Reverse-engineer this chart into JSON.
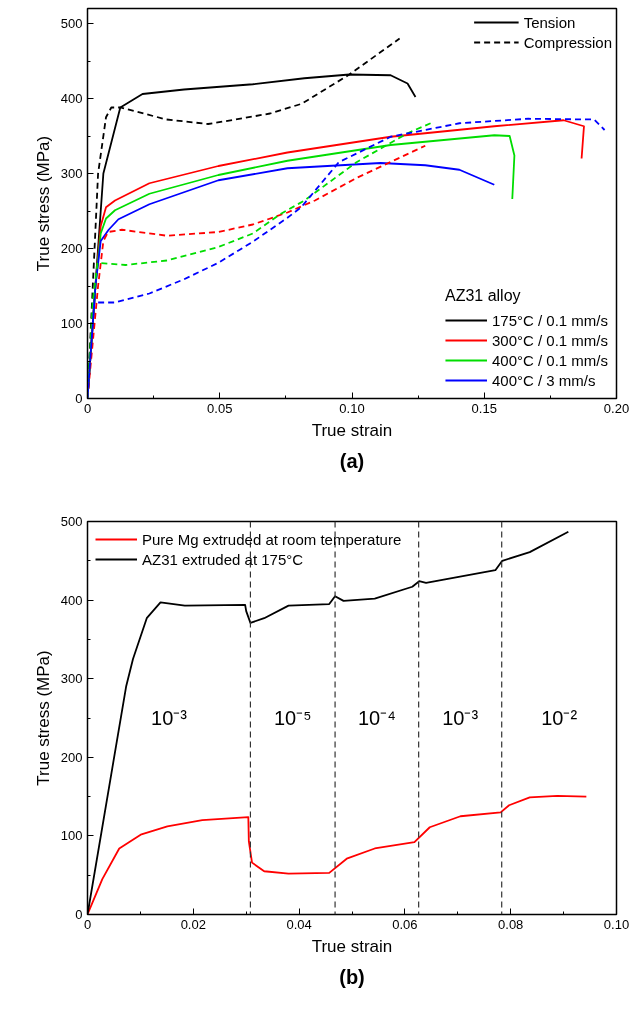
{
  "chart_data": [
    {
      "type": "line",
      "title": "(a)",
      "xlabel": "True strain",
      "ylabel": "True stress (MPa)",
      "legend": "bottom right",
      "legend_title": "AZ31 alloy",
      "xlim": [
        0,
        0.2
      ],
      "ylim": [
        0,
        520
      ],
      "xticks": [
        {
          "value": 0,
          "label": "0"
        },
        {
          "value": 0.025,
          "label": null
        },
        0.05,
        {
          "value": 0.075,
          "label": null
        },
        {
          "value": 0.1,
          "label": "0.10"
        },
        {
          "value": 0.125,
          "label": null
        },
        0.15,
        {
          "value": 0.175,
          "label": null
        },
        {
          "value": 0.2,
          "label": "0.20"
        }
      ],
      "yticks": [
        0,
        {
          "value": 50,
          "label": null
        },
        100,
        {
          "value": 150,
          "label": null
        },
        200,
        {
          "value": 250,
          "label": null
        },
        300,
        {
          "value": 350,
          "label": null
        },
        400,
        {
          "value": 450,
          "label": null
        },
        500
      ],
      "annotations": [
        "Tension",
        "Compression"
      ],
      "series": [
        {
          "name": "175°C / 0.1 mm/s",
          "color": "#000000",
          "line_style": "solid",
          "x": [
            0,
            0.006,
            0.0124,
            0.0208,
            0.0365,
            0.0625,
            0.082,
            0.099,
            0.1146,
            0.121,
            0.124
          ],
          "values": [
            0,
            300,
            388,
            406,
            412,
            419,
            427,
            432,
            431,
            420,
            402
          ]
        },
        {
          "name": "300°C / 0.1 mm/s",
          "color": "#ff0000",
          "line_style": "solid",
          "x": [
            0,
            0.003,
            0.005,
            0.007,
            0.0104,
            0.0234,
            0.0495,
            0.0756,
            0.1146,
            0.1538,
            0.18,
            0.1877,
            0.1868
          ],
          "values": [
            0,
            150,
            230,
            255,
            264,
            287,
            310,
            328,
            349,
            363,
            371,
            363,
            320
          ]
        },
        {
          "name": "400°C / 0.1 mm/s",
          "color": "#00dd00",
          "line_style": "solid",
          "x": [
            0,
            0.003,
            0.005,
            0.007,
            0.0104,
            0.0234,
            0.0495,
            0.0756,
            0.1146,
            0.1538,
            0.1596,
            0.1614,
            0.1606
          ],
          "values": [
            0,
            150,
            220,
            240,
            251,
            273,
            298,
            317,
            338,
            351,
            350,
            324,
            266
          ]
        },
        {
          "name": "400°C / 3 mm/s",
          "color": "#0000ff",
          "line_style": "solid",
          "x": [
            0,
            0.003,
            0.005,
            0.008,
            0.0117,
            0.0234,
            0.0495,
            0.0756,
            0.1108,
            0.1277,
            0.1406,
            0.1538
          ],
          "values": [
            0,
            150,
            210,
            225,
            239,
            259,
            291,
            307,
            314,
            311,
            305,
            285
          ]
        },
        {
          "color": "#000000",
          "line_style": "dashed",
          "x": [
            0,
            0.004,
            0.007,
            0.009,
            0.0124,
            0.0299,
            0.0456,
            0.056,
            0.069,
            0.081,
            0.099,
            0.118
          ],
          "values": [
            0,
            300,
            375,
            388,
            388,
            372,
            366,
            372,
            380,
            393,
            432,
            480
          ]
        },
        {
          "color": "#ff0000",
          "line_style": "dashed",
          "x": [
            0,
            0.004,
            0.006,
            0.0078,
            0.013,
            0.03,
            0.0495,
            0.0625,
            0.0756,
            0.086,
            0.1017,
            0.1277
          ],
          "values": [
            0,
            150,
            210,
            222,
            225,
            217,
            222,
            232,
            248,
            264,
            294,
            337
          ]
        },
        {
          "color": "#00dd00",
          "line_style": "dashed",
          "x": [
            0,
            0.002,
            0.0038,
            0.0143,
            0.03,
            0.0495,
            0.0625,
            0.073,
            0.082,
            0.1017,
            0.1212,
            0.1297
          ],
          "values": [
            0,
            130,
            181,
            178,
            184,
            202,
            220,
            246,
            264,
            315,
            354,
            367
          ]
        },
        {
          "color": "#0000ff",
          "line_style": "dashed",
          "x": [
            0,
            0.002,
            0.0026,
            0.0104,
            0.0234,
            0.0365,
            0.0495,
            0.0625,
            0.0756,
            0.0808,
            0.095,
            0.1146,
            0.1406,
            0.1667,
            0.1916,
            0.1955
          ],
          "values": [
            0,
            100,
            128,
            128,
            140,
            159,
            181,
            209,
            241,
            255,
            315,
            349,
            367,
            373,
            372,
            358
          ]
        }
      ]
    },
    {
      "type": "line",
      "title": "(b)",
      "xlabel": "True strain",
      "ylabel": "True stress (MPa)",
      "legend": "top left",
      "xlim": [
        0,
        0.1
      ],
      "ylim": [
        0,
        500
      ],
      "xticks": [
        {
          "value": 0,
          "label": "0"
        },
        {
          "value": 0.01,
          "label": null
        },
        0.02,
        {
          "value": 0.03,
          "label": null
        },
        0.04,
        {
          "value": 0.05,
          "label": null
        },
        0.06,
        {
          "value": 0.07,
          "label": null
        },
        0.08,
        {
          "value": 0.09,
          "label": null
        },
        {
          "value": 0.1,
          "label": "0.10"
        }
      ],
      "yticks": [
        0,
        {
          "value": 50,
          "label": null
        },
        100,
        {
          "value": 150,
          "label": null
        },
        200,
        {
          "value": 250,
          "label": null
        },
        300,
        {
          "value": 350,
          "label": null
        },
        400,
        {
          "value": 450,
          "label": null
        },
        500
      ],
      "ref_lines": [
        {
          "axis": "x",
          "value": 0.0308,
          "line_style": "dashed",
          "color": "#333333"
        },
        {
          "axis": "x",
          "value": 0.0468,
          "line_style": "dashed",
          "color": "#333333"
        },
        {
          "axis": "x",
          "value": 0.0626,
          "line_style": "dashed",
          "color": "#333333"
        },
        {
          "axis": "x",
          "value": 0.0783,
          "line_style": "dashed",
          "color": "#333333"
        }
      ],
      "annotations": [
        "10⁻³",
        "10⁻⁵",
        "10⁻⁴",
        "10⁻³",
        "10⁻²"
      ],
      "series": [
        {
          "name": "Pure Mg extruded at room temperature",
          "color": "#ff0000",
          "line_style": "solid",
          "x": [
            0,
            0.0028,
            0.006,
            0.0102,
            0.0151,
            0.0217,
            0.0304,
            0.0305,
            0.0311,
            0.0334,
            0.038,
            0.0457,
            0.049,
            0.0543,
            0.0618,
            0.0647,
            0.0705,
            0.0781,
            0.0797,
            0.0836,
            0.0888,
            0.0943
          ],
          "values": [
            0,
            45,
            84,
            102,
            112,
            120,
            124,
            93,
            66,
            55,
            52,
            53,
            71,
            84,
            92,
            111,
            125,
            130,
            139,
            149,
            151,
            150
          ]
        },
        {
          "name": "AZ31 extruded at 175°C",
          "color": "#000000",
          "line_style": "solid",
          "x": [
            0,
            0.0073,
            0.0086,
            0.0112,
            0.0138,
            0.0184,
            0.0298,
            0.03,
            0.0308,
            0.0334,
            0.038,
            0.0457,
            0.0468,
            0.0484,
            0.0543,
            0.0614,
            0.0627,
            0.064,
            0.0771,
            0.0784,
            0.0836,
            0.0909
          ],
          "values": [
            0,
            290,
            325,
            377,
            397,
            393,
            394,
            386,
            371,
            377,
            393,
            395,
            405,
            399,
            402,
            417,
            424,
            422,
            438,
            450,
            461,
            487
          ]
        }
      ]
    }
  ]
}
